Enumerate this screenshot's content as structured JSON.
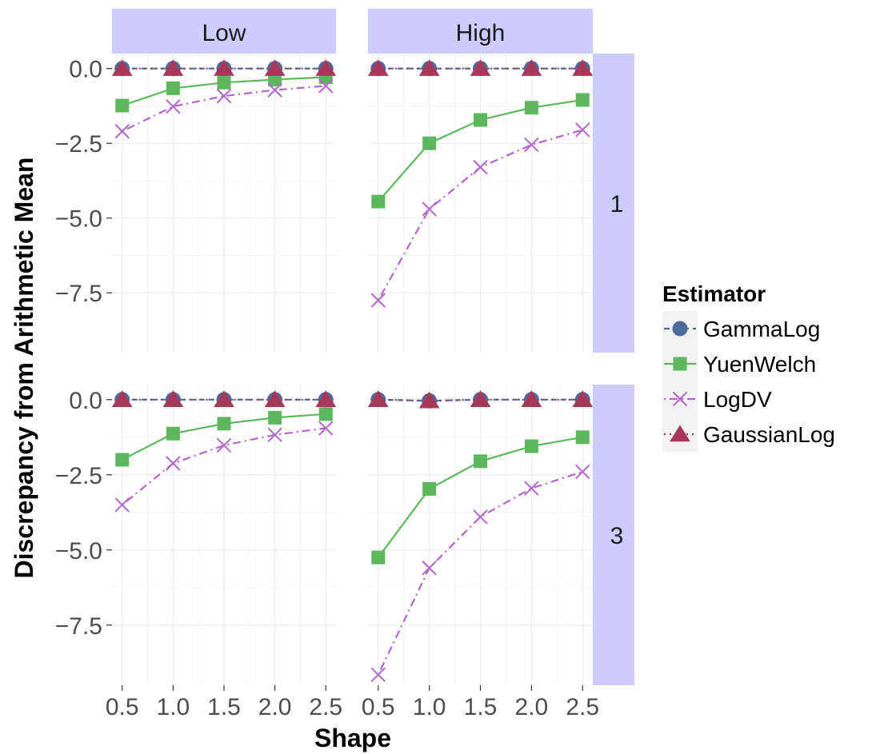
{
  "chart_data": {
    "type": "line",
    "x_label": "Shape",
    "y_label": "Discrepancy from Arithmetic Mean",
    "x_ticks": [
      "0.5",
      "1.0",
      "1.5",
      "2.0",
      "2.5"
    ],
    "y_ticks": [
      "0.0",
      "−2.5",
      "−5.0",
      "−7.5"
    ],
    "x": [
      0.5,
      1.0,
      1.5,
      2.0,
      2.5
    ],
    "xlim": [
      0.4,
      2.6
    ],
    "ylim": [
      -9.5,
      0.5
    ],
    "grid": true,
    "column_facets": [
      "Low",
      "High"
    ],
    "row_facets": [
      "1",
      "3"
    ],
    "legend": {
      "title": "Estimator",
      "placement": "right",
      "entries": [
        {
          "name": "GammaLog",
          "color": "#4e6a9a",
          "marker": "circle",
          "line": "dashed"
        },
        {
          "name": "YuenWelch",
          "color": "#5cb85c",
          "marker": "square",
          "line": "solid"
        },
        {
          "name": "LogDV",
          "color": "#b366cc",
          "marker": "x",
          "line": "dotdash"
        },
        {
          "name": "GaussianLog",
          "color": "#a8385a",
          "marker": "triangle",
          "line": "dotted"
        }
      ]
    },
    "panels": [
      {
        "row": "1",
        "col": "Low",
        "series": [
          {
            "name": "GammaLog",
            "values": [
              0,
              0,
              0,
              0,
              0
            ]
          },
          {
            "name": "YuenWelch",
            "values": [
              -1.24,
              -0.66,
              -0.47,
              -0.37,
              -0.29
            ]
          },
          {
            "name": "LogDV",
            "values": [
              -2.1,
              -1.27,
              -0.92,
              -0.72,
              -0.58
            ]
          },
          {
            "name": "GaussianLog",
            "values": [
              0,
              0,
              0,
              0,
              0
            ]
          }
        ]
      },
      {
        "row": "1",
        "col": "High",
        "series": [
          {
            "name": "GammaLog",
            "values": [
              0,
              0,
              0,
              0,
              0
            ]
          },
          {
            "name": "YuenWelch",
            "values": [
              -4.45,
              -2.5,
              -1.72,
              -1.31,
              -1.05
            ]
          },
          {
            "name": "LogDV",
            "values": [
              -7.75,
              -4.7,
              -3.3,
              -2.55,
              -2.05
            ]
          },
          {
            "name": "GaussianLog",
            "values": [
              0,
              0,
              0,
              0,
              0
            ]
          }
        ]
      },
      {
        "row": "3",
        "col": "Low",
        "series": [
          {
            "name": "GammaLog",
            "values": [
              0,
              0,
              0,
              0,
              0
            ]
          },
          {
            "name": "YuenWelch",
            "values": [
              -2.0,
              -1.13,
              -0.8,
              -0.6,
              -0.48
            ]
          },
          {
            "name": "LogDV",
            "values": [
              -3.5,
              -2.12,
              -1.52,
              -1.17,
              -0.95
            ]
          },
          {
            "name": "GaussianLog",
            "values": [
              0,
              0,
              0,
              0,
              0
            ]
          }
        ]
      },
      {
        "row": "3",
        "col": "High",
        "series": [
          {
            "name": "GammaLog",
            "values": [
              0,
              -0.04,
              0,
              0,
              0
            ]
          },
          {
            "name": "YuenWelch",
            "values": [
              -5.25,
              -2.97,
              -2.05,
              -1.55,
              -1.25
            ]
          },
          {
            "name": "LogDV",
            "values": [
              -9.15,
              -5.6,
              -3.9,
              -2.95,
              -2.4
            ]
          },
          {
            "name": "GaussianLog",
            "values": [
              0,
              -0.04,
              0,
              0,
              0
            ]
          }
        ]
      }
    ]
  }
}
